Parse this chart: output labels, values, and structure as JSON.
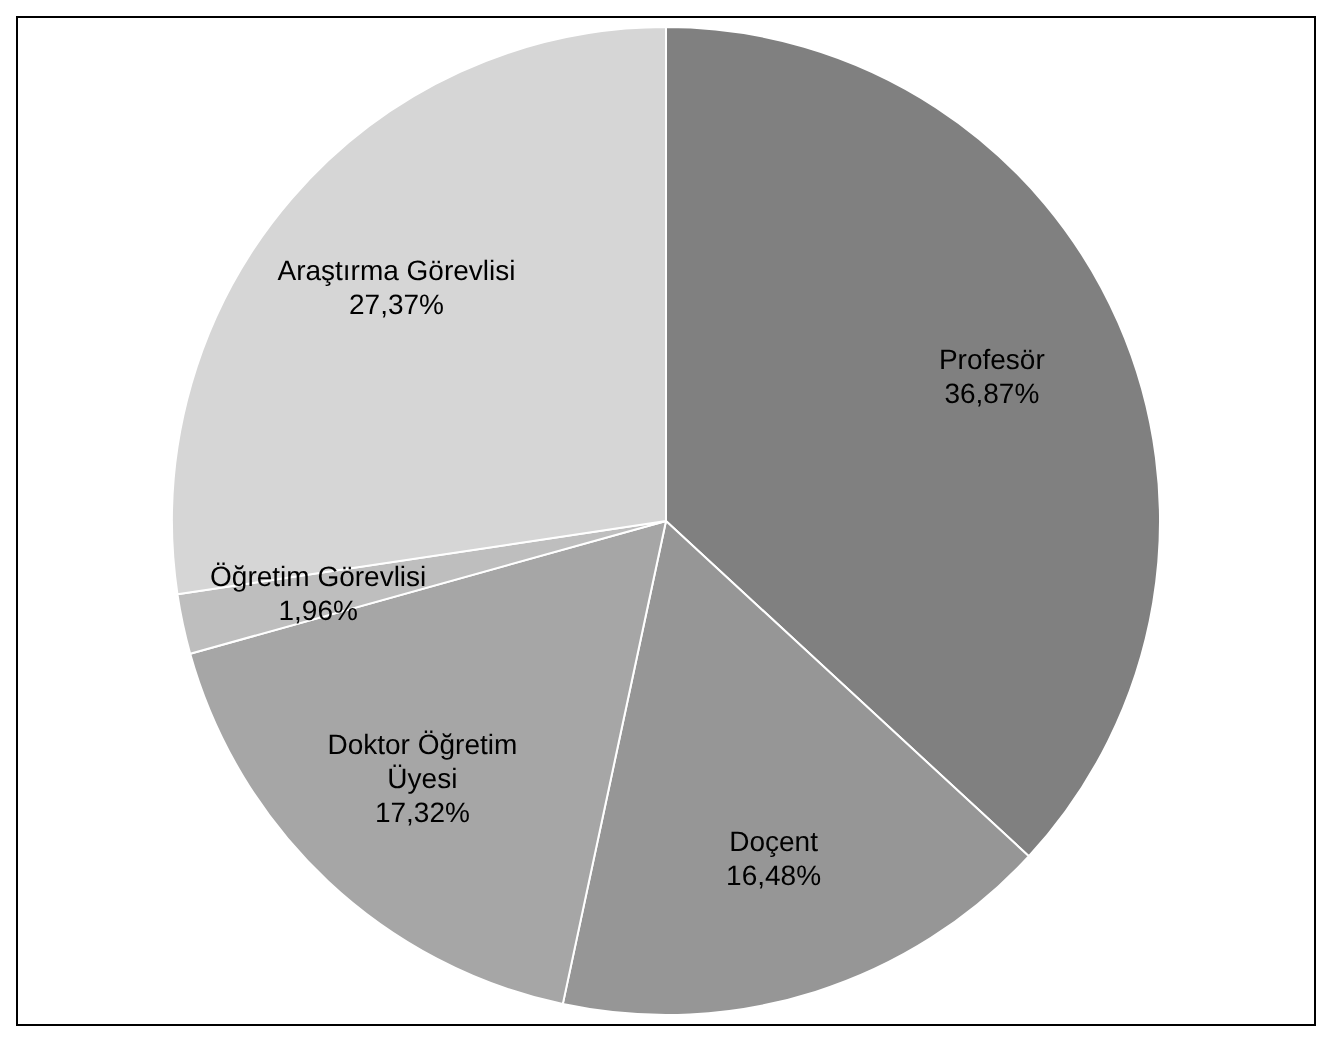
{
  "chart_data": {
    "type": "pie",
    "categories": [
      "Profesör",
      "Doçent",
      "Doktor Öğretim Üyesi",
      "Öğretim Görevlisi",
      "Araştırma Görevlisi"
    ],
    "values": [
      36.87,
      16.48,
      17.32,
      1.96,
      27.37
    ],
    "colors": [
      "#808080",
      "#969696",
      "#a6a6a6",
      "#bebebe",
      "#d6d6d6"
    ],
    "value_labels": [
      "36,87%",
      "16,48%",
      "17,32%",
      "1,96%",
      "27,37%"
    ],
    "legend": false
  }
}
